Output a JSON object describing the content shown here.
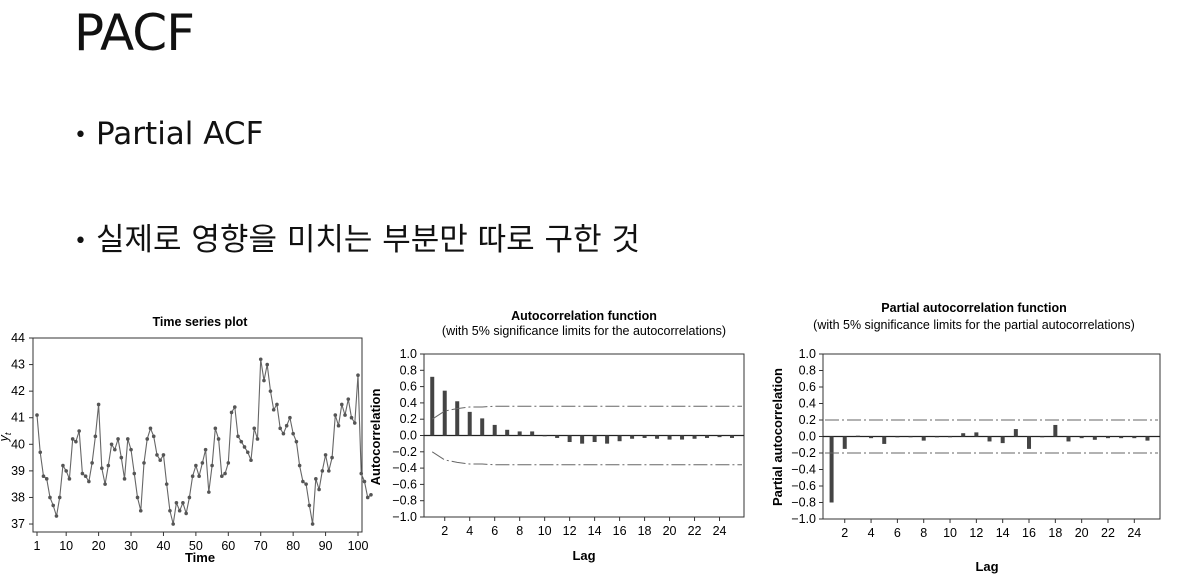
{
  "slide": {
    "title": "PACF",
    "bullets": [
      {
        "text": "Partial ACF"
      },
      {
        "text": "실제로 영향을 미치는 부분만 따로 구한 것"
      }
    ]
  },
  "chart_data": [
    {
      "type": "line",
      "title": "Time series plot",
      "xlabel": "Time",
      "ylabel": "y_t",
      "xlim": [
        1,
        100
      ],
      "ylim": [
        36.7,
        44
      ],
      "xticks": [
        "1",
        "10",
        "20",
        "30",
        "40",
        "50",
        "60",
        "70",
        "80",
        "90",
        "100"
      ],
      "yticks": [
        "37",
        "38",
        "39",
        "40",
        "41",
        "42",
        "43",
        "44"
      ],
      "series": [
        {
          "values": [
            41.1,
            39.7,
            38.8,
            38.7,
            38.0,
            37.7,
            37.3,
            38.0,
            39.2,
            39.0,
            38.7,
            40.2,
            40.1,
            40.5,
            38.9,
            38.8,
            38.6,
            39.3,
            40.3,
            41.5,
            39.1,
            38.5,
            39.2,
            40.0,
            39.8,
            40.2,
            39.5,
            38.7,
            40.2,
            39.8,
            38.9,
            38.0,
            37.5,
            39.3,
            40.2,
            40.6,
            40.3,
            39.6,
            39.4,
            39.6,
            38.5,
            37.5,
            37.0,
            37.8,
            37.5,
            37.8,
            37.4,
            38.0,
            38.8,
            39.2,
            38.8,
            39.3,
            39.8,
            38.2,
            39.2,
            40.6,
            40.2,
            38.8,
            38.9,
            39.3,
            41.2,
            41.4,
            40.3,
            40.1,
            39.9,
            39.7,
            39.4,
            40.6,
            40.2,
            43.2,
            42.4,
            43.0,
            42.0,
            41.3,
            41.5,
            40.6,
            40.4,
            40.7,
            41.0,
            40.4,
            40.1,
            39.2,
            38.6,
            38.5,
            37.7,
            37.0,
            38.7,
            38.3,
            39.0,
            39.6,
            39.0,
            39.5,
            41.1,
            40.7,
            41.5,
            41.1,
            41.7,
            41.0,
            40.8,
            42.6,
            38.9,
            38.6,
            38.0,
            38.1
          ]
        }
      ],
      "grid": false
    },
    {
      "type": "bar",
      "title": "Autocorrelation function",
      "subtitle": "(with 5% significance limits for the autocorrelations)",
      "xlabel": "Lag",
      "ylabel": "Autocorrelation",
      "ylim": [
        -1.0,
        1.0
      ],
      "yticks": [
        "1.0",
        "0.8",
        "0.6",
        "0.4",
        "0.2",
        "0.0",
        "−0.2",
        "−0.4",
        "−0.6",
        "−0.8",
        "−1.0"
      ],
      "xticks": [
        "2",
        "4",
        "6",
        "8",
        "10",
        "12",
        "14",
        "16",
        "18",
        "20",
        "22",
        "24"
      ],
      "x": [
        1,
        2,
        3,
        4,
        5,
        6,
        7,
        8,
        9,
        10,
        11,
        12,
        13,
        14,
        15,
        16,
        17,
        18,
        19,
        20,
        21,
        22,
        23,
        24,
        25
      ],
      "values": [
        0.72,
        0.55,
        0.42,
        0.29,
        0.21,
        0.13,
        0.07,
        0.05,
        0.05,
        0.0,
        -0.03,
        -0.08,
        -0.1,
        -0.08,
        -0.1,
        -0.07,
        -0.04,
        -0.03,
        -0.04,
        -0.05,
        -0.05,
        -0.04,
        -0.03,
        -0.02,
        -0.03
      ],
      "limits_upper": [
        0.2,
        0.3,
        0.33,
        0.35,
        0.35,
        0.36,
        0.36,
        0.36,
        0.36,
        0.36,
        0.36,
        0.36,
        0.36,
        0.36,
        0.36,
        0.36,
        0.36,
        0.36,
        0.36,
        0.36,
        0.36,
        0.36,
        0.36,
        0.36,
        0.36
      ],
      "grid": false
    },
    {
      "type": "bar",
      "title": "Partial autocorrelation function",
      "subtitle": "(with 5% significance limits for the partial autocorrelations)",
      "xlabel": "Lag",
      "ylabel": "Partial autocorrelation",
      "ylim": [
        -1.0,
        1.0
      ],
      "yticks": [
        "1.0",
        "0.8",
        "0.6",
        "0.4",
        "0.2",
        "0.0",
        "−0.2",
        "−0.4",
        "−0.6",
        "−0.8",
        "−1.0"
      ],
      "xticks": [
        "2",
        "4",
        "6",
        "8",
        "10",
        "12",
        "14",
        "16",
        "18",
        "20",
        "22",
        "24"
      ],
      "x": [
        1,
        2,
        3,
        4,
        5,
        6,
        7,
        8,
        9,
        10,
        11,
        12,
        13,
        14,
        15,
        16,
        17,
        18,
        19,
        20,
        21,
        22,
        23,
        24,
        25
      ],
      "values": [
        -0.8,
        -0.15,
        0.01,
        -0.02,
        -0.09,
        -0.01,
        0.0,
        -0.05,
        -0.01,
        0.0,
        0.04,
        0.05,
        -0.06,
        -0.08,
        0.09,
        -0.15,
        0.0,
        0.14,
        -0.06,
        -0.02,
        -0.04,
        -0.02,
        -0.02,
        -0.02,
        -0.05
      ],
      "limit": 0.2,
      "grid": false
    }
  ]
}
